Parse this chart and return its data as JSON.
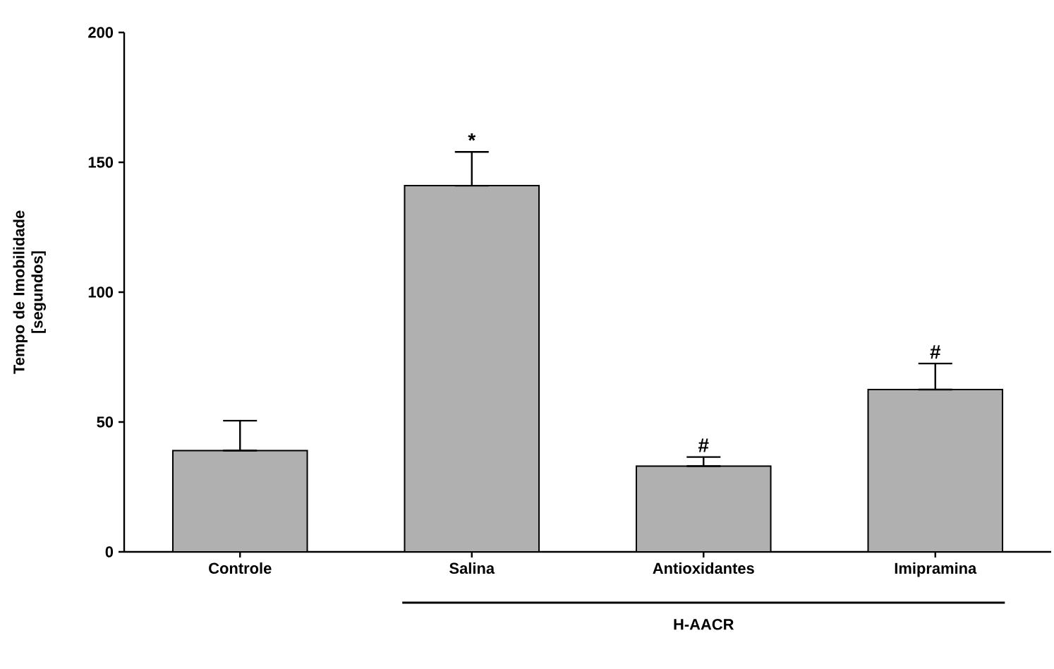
{
  "chart_data": {
    "type": "bar",
    "ylabel": "Tempo de Imobilidade [segundos]",
    "categories": [
      "Controle",
      "Salina",
      "Antioxidantes",
      "Imipramina"
    ],
    "values": [
      39,
      141,
      33,
      62.5
    ],
    "errors": [
      [
        39,
        50.5
      ],
      [
        141,
        154
      ],
      [
        33,
        36.5
      ],
      [
        62.5,
        72.5
      ]
    ],
    "color": "#b0b0b0",
    "ylim": [
      0,
      200
    ],
    "yticks": [
      0,
      50,
      100,
      150,
      200
    ],
    "annotations": [
      {
        "text": "*",
        "x": "Salina",
        "y": 154
      },
      {
        "text": "#",
        "x": "Antioxidantes",
        "y": 36.5
      },
      {
        "text": "#",
        "x": "Imipramina",
        "y": 72.5
      },
      "H-AACR"
    ]
  }
}
